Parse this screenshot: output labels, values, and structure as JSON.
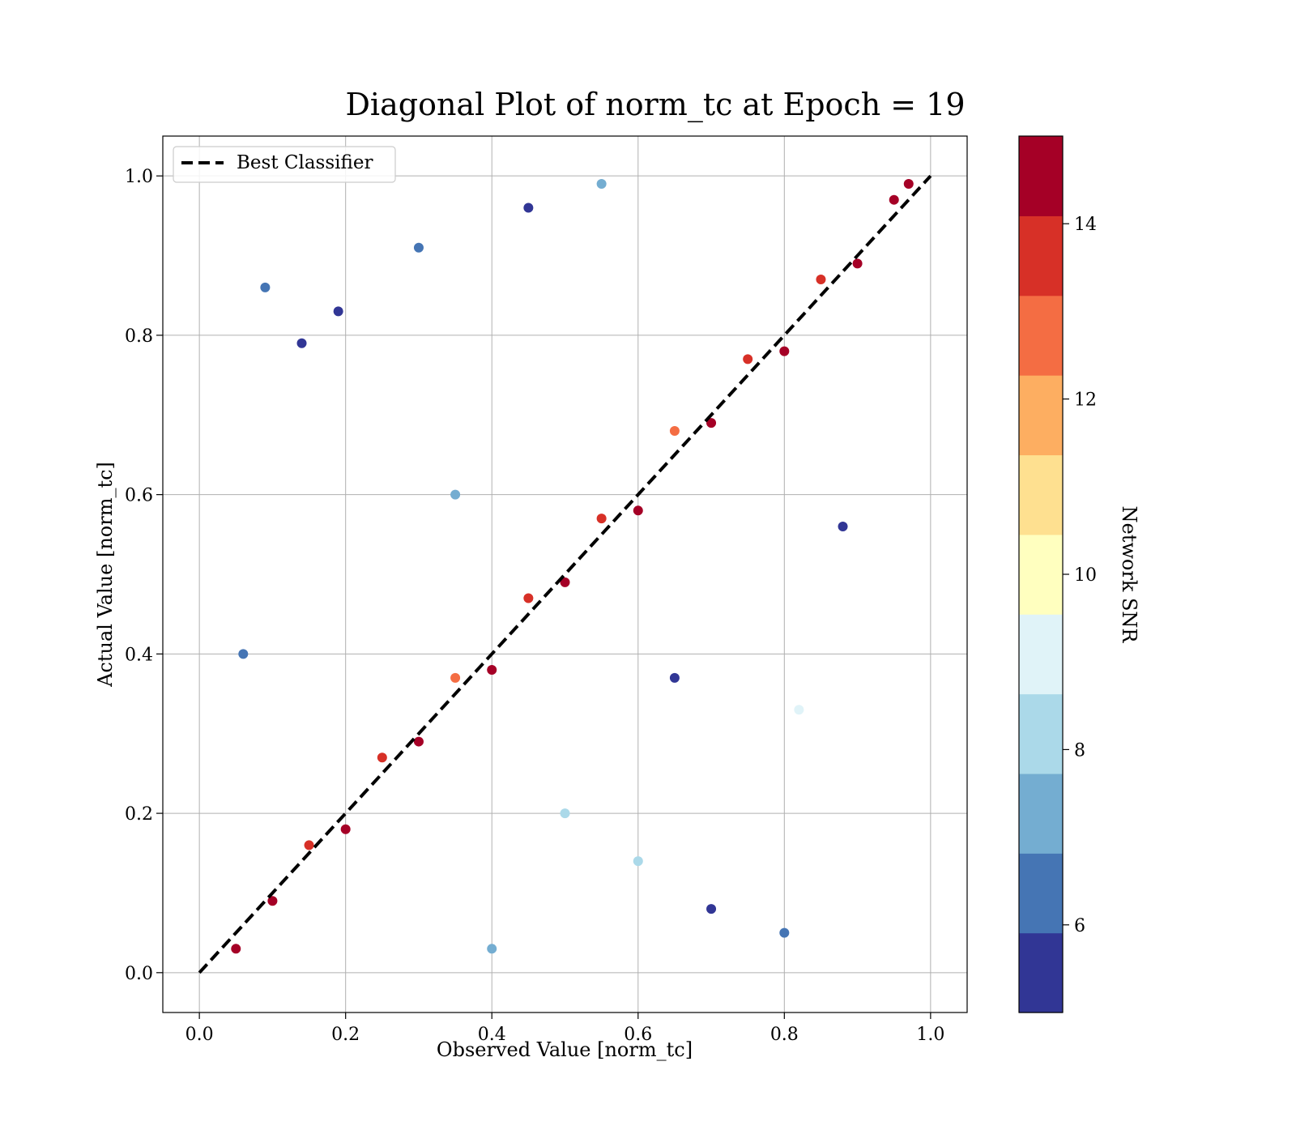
{
  "chart_data": {
    "type": "scatter",
    "title": "Diagonal Plot of norm_tc at Epoch = 19",
    "xlabel": "Observed Value [norm_tc]",
    "ylabel": "Actual Value [norm_tc]",
    "xlim": [
      -0.05,
      1.05
    ],
    "ylim": [
      -0.05,
      1.05
    ],
    "xticks": [
      "0.0",
      "0.2",
      "0.4",
      "0.6",
      "0.8",
      "1.0"
    ],
    "yticks": [
      "0.0",
      "0.2",
      "0.4",
      "0.6",
      "0.8",
      "1.0"
    ],
    "grid": true,
    "legend": {
      "position": "top-left",
      "entries": [
        {
          "name": "Best Classifier",
          "style": "dashed",
          "color": "#000000"
        }
      ]
    },
    "reference_line": {
      "name": "Best Classifier",
      "x": [
        0,
        1
      ],
      "y": [
        0,
        1
      ]
    },
    "colorbar": {
      "label": "Network SNR",
      "range": [
        5,
        15
      ],
      "ticks": [
        "6",
        "8",
        "10",
        "12",
        "14"
      ],
      "colors": [
        "#313695",
        "#4575b4",
        "#74add1",
        "#abd9e9",
        "#e0f3f8",
        "#ffffbf",
        "#fee090",
        "#fdae61",
        "#f46d43",
        "#d73027",
        "#a50026"
      ]
    },
    "series": [
      {
        "description": "high-SNR points tightly along the diagonal",
        "points": [
          [
            0.05,
            0.03,
            14.6
          ],
          [
            0.1,
            0.09,
            14.2
          ],
          [
            0.15,
            0.16,
            13.5
          ],
          [
            0.2,
            0.18,
            14.8
          ],
          [
            0.25,
            0.27,
            13.9
          ],
          [
            0.3,
            0.29,
            14.4
          ],
          [
            0.35,
            0.37,
            12.8
          ],
          [
            0.4,
            0.38,
            14.9
          ],
          [
            0.45,
            0.47,
            13.2
          ],
          [
            0.5,
            0.49,
            14.7
          ],
          [
            0.55,
            0.57,
            13.8
          ],
          [
            0.6,
            0.58,
            14.5
          ],
          [
            0.65,
            0.68,
            12.6
          ],
          [
            0.7,
            0.69,
            14.9
          ],
          [
            0.75,
            0.77,
            13.4
          ],
          [
            0.8,
            0.78,
            14.6
          ],
          [
            0.85,
            0.87,
            13.7
          ],
          [
            0.9,
            0.89,
            14.8
          ],
          [
            0.95,
            0.97,
            14.1
          ],
          [
            0.97,
            0.99,
            14.9
          ]
        ]
      },
      {
        "description": "low-SNR scattered points",
        "points": [
          [
            0.09,
            0.86,
            6.2
          ],
          [
            0.14,
            0.79,
            5.4
          ],
          [
            0.19,
            0.83,
            5.8
          ],
          [
            0.3,
            0.91,
            6.4
          ],
          [
            0.45,
            0.96,
            5.2
          ],
          [
            0.55,
            0.99,
            7.6
          ],
          [
            0.6,
            0.14,
            8.1
          ],
          [
            0.7,
            0.08,
            5.6
          ],
          [
            0.8,
            0.05,
            6.8
          ],
          [
            0.88,
            0.56,
            5.3
          ],
          [
            0.82,
            0.33,
            9.2
          ],
          [
            0.06,
            0.4,
            6.6
          ],
          [
            0.4,
            0.03,
            7.2
          ],
          [
            0.5,
            0.2,
            8.6
          ],
          [
            0.65,
            0.37,
            5.9
          ],
          [
            0.35,
            0.6,
            6.9
          ]
        ]
      }
    ]
  }
}
